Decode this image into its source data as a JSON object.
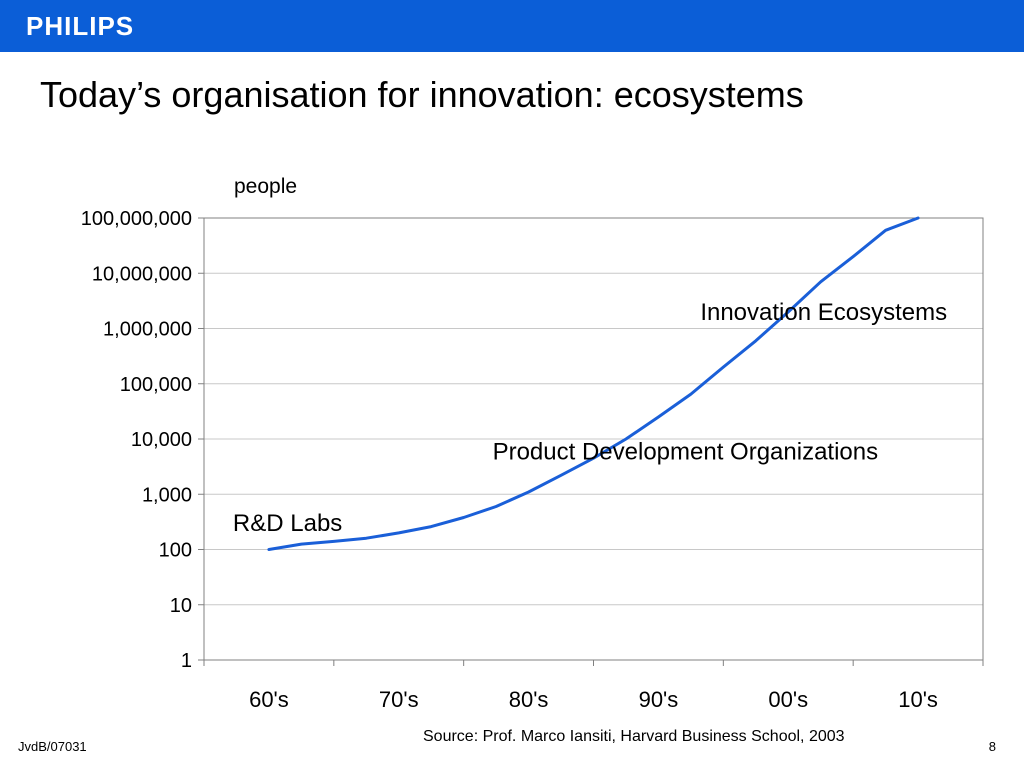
{
  "header": {
    "logo_text": "PHILIPS",
    "bar_color": "#0b5ed7"
  },
  "slide": {
    "title": "Today’s organisation for innovation: ecosystems",
    "source": "Source: Prof. Marco Iansiti, Harvard Business School, 2003",
    "footer_left": "JvdB/07031",
    "page_number": "8"
  },
  "chart_data": {
    "type": "line",
    "ylabel": "people",
    "xlabel": "",
    "y_scale": "log",
    "ylim": [
      1,
      100000000
    ],
    "y_ticks": [
      1,
      10,
      100,
      1000,
      10000,
      100000,
      1000000,
      10000000,
      100000000
    ],
    "y_tick_labels": [
      "1",
      "10",
      "100",
      "1,000",
      "10,000",
      "100,000",
      "1,000,000",
      "10,000,000",
      "100,000,000"
    ],
    "categories": [
      "60's",
      "70's",
      "80's",
      "90's",
      "00's",
      "10's"
    ],
    "grid": true,
    "line_color": "#1a5fd8",
    "series": [
      {
        "x": [
          0,
          0.25,
          0.5,
          0.75,
          1,
          1.25,
          1.5,
          1.75,
          2,
          2.25,
          2.5,
          2.75,
          3,
          3.25,
          3.5,
          3.75,
          4,
          4.25,
          4.5,
          4.75,
          5
        ],
        "values": [
          100,
          125,
          140,
          160,
          200,
          260,
          380,
          600,
          1100,
          2200,
          4500,
          10000,
          25000,
          65000,
          200000,
          600000,
          2000000,
          7000000,
          20000000,
          60000000,
          100000000
        ]
      }
    ],
    "annotations": [
      {
        "text": "R&D Labs",
        "x": 0.0,
        "y": 300
      },
      {
        "text": "Product Development Organizations",
        "x": 2.0,
        "y": 6000
      },
      {
        "text": "Innovation Ecosystems",
        "x": 3.6,
        "y": 2000000
      }
    ]
  }
}
